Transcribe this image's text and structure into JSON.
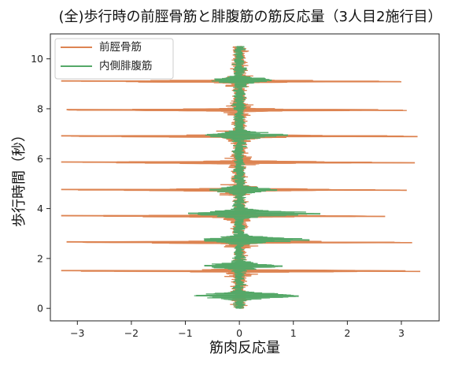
{
  "chart_data": {
    "type": "line",
    "title": "(全)歩行時の前脛骨筋と腓腹筋の筋反応量（3人目2施行目）",
    "xlabel": "筋肉反応量",
    "ylabel": "歩行時間（秒）",
    "xlim": [
      -3.5,
      3.7
    ],
    "ylim": [
      -0.5,
      11.0
    ],
    "xticks": [
      -3,
      -2,
      -1,
      0,
      1,
      2,
      3
    ],
    "yticks": [
      0,
      2,
      4,
      6,
      8,
      10
    ],
    "grid": false,
    "legend_position": "top-left",
    "time_range": [
      0.0,
      10.5
    ],
    "series": [
      {
        "name": "前脛骨筋",
        "color": "#dd8452",
        "spikes": [
          {
            "t": 9.1,
            "min": -3.3,
            "max": 3.0
          },
          {
            "t": 7.95,
            "min": -3.2,
            "max": 3.1
          },
          {
            "t": 6.9,
            "min": -3.3,
            "max": 3.3
          },
          {
            "t": 5.85,
            "min": -3.3,
            "max": 3.25
          },
          {
            "t": 4.75,
            "min": -3.3,
            "max": 3.1
          },
          {
            "t": 3.7,
            "min": -3.3,
            "max": 2.7
          },
          {
            "t": 2.65,
            "min": -3.2,
            "max": 3.2
          },
          {
            "t": 1.5,
            "min": -3.3,
            "max": 3.35
          }
        ]
      },
      {
        "name": "内側腓腹筋",
        "color": "#55a868",
        "bursts": [
          {
            "t": 0.5,
            "min": -0.8,
            "max": 1.1
          },
          {
            "t": 1.7,
            "min": -0.65,
            "max": 0.8
          },
          {
            "t": 2.75,
            "min": -0.65,
            "max": 1.3
          },
          {
            "t": 3.8,
            "min": -0.95,
            "max": 1.5
          },
          {
            "t": 4.75,
            "min": -0.55,
            "max": 0.7
          },
          {
            "t": 6.95,
            "min": -0.6,
            "max": 0.9
          },
          {
            "t": 9.15,
            "min": -0.45,
            "max": 0.6
          }
        ]
      }
    ]
  }
}
